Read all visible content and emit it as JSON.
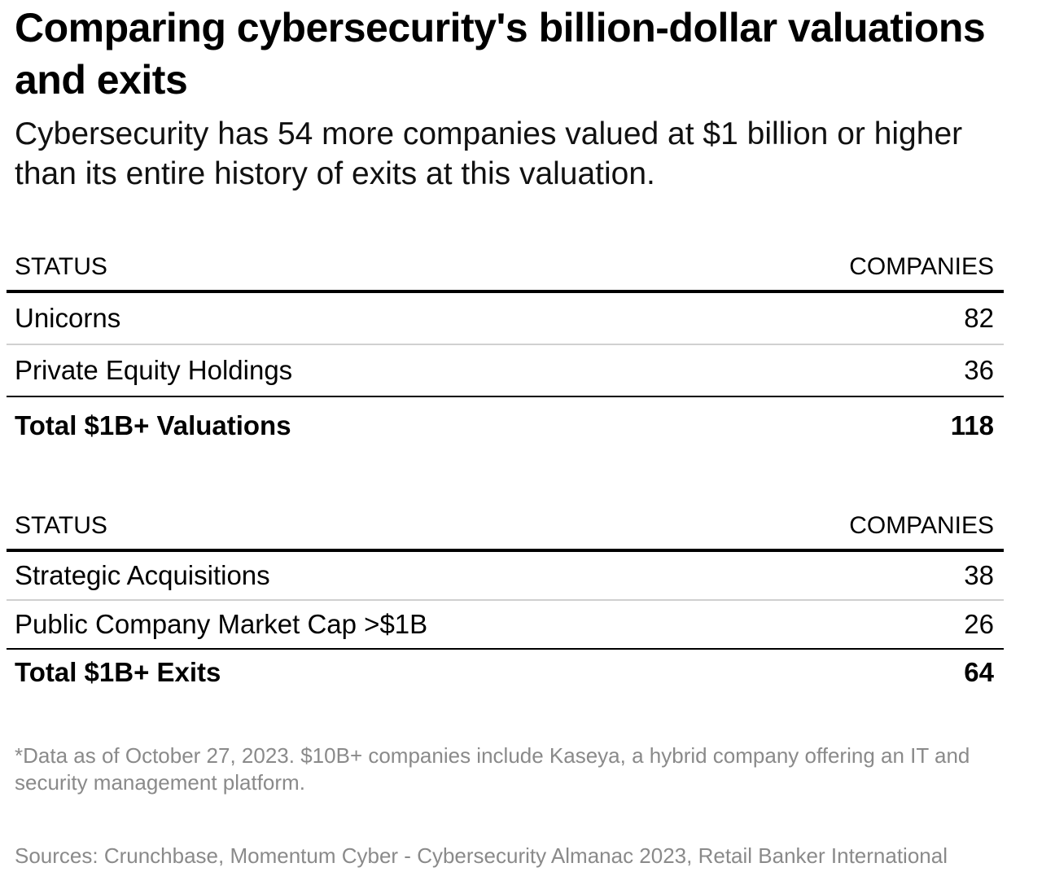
{
  "title": "Comparing cybersecurity's billion-dollar valuations and exits",
  "subtitle": "Cybersecurity has 54 more companies valued at $1 billion or higher than its entire history of exits at this valuation.",
  "chart_data": {
    "type": "table",
    "tables": [
      {
        "columns": [
          "STATUS",
          "COMPANIES"
        ],
        "rows": [
          {
            "status": "Unicorns",
            "companies": "82"
          },
          {
            "status": "Private Equity Holdings",
            "companies": "36"
          }
        ],
        "total": {
          "status": "Total $1B+ Valuations",
          "companies": "118"
        }
      },
      {
        "columns": [
          "STATUS",
          "COMPANIES"
        ],
        "rows": [
          {
            "status": "Strategic Acquisitions",
            "companies": "38"
          },
          {
            "status": "Public Company Market Cap >$1B",
            "companies": "26"
          }
        ],
        "total": {
          "status": "Total $1B+ Exits",
          "companies": "64"
        }
      }
    ]
  },
  "note": "*Data as of October 27, 2023. $10B+ companies include Kaseya, a hybrid company offering an IT and security management platform.",
  "sources": "Sources: Crunchbase, Momentum Cyber - Cybersecurity Almanac 2023, Retail Banker International"
}
